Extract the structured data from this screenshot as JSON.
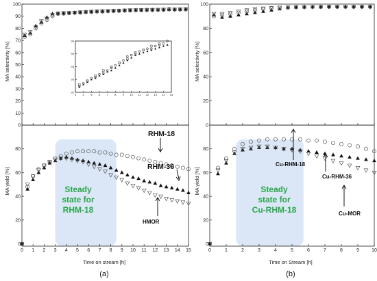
{
  "colors": {
    "shade": "#dbe7f6",
    "shade_text": "#2aa64a",
    "marker": "#111111",
    "open_marker": "#555555"
  },
  "chart_data": [
    {
      "type": "scatter",
      "id": "a_top",
      "xlim": [
        0,
        15
      ],
      "ylim": [
        0,
        100
      ],
      "ylabel": "MA selectivity [%]",
      "xticks": [
        0,
        1,
        2,
        3,
        4,
        5,
        6,
        7,
        8,
        9,
        10,
        11,
        12,
        13,
        14,
        15
      ],
      "yticks": [
        0,
        10,
        20,
        30,
        40,
        50,
        60,
        70,
        80,
        90,
        100
      ],
      "series": [
        {
          "marker": "triangle",
          "x": [
            0.25,
            0.75,
            1.25,
            1.75,
            2.25,
            2.75,
            3.25,
            3.75,
            4.25,
            4.75,
            5.25,
            5.75,
            6.25,
            6.75,
            7.25,
            7.75,
            8.25,
            8.75,
            9.25,
            9.75,
            10.25,
            10.75,
            11.25,
            11.75,
            12.25,
            12.75,
            13.25,
            13.75,
            14.25,
            14.75
          ],
          "values": [
            74,
            76,
            82,
            85,
            89,
            92,
            92.3,
            92.5,
            92.7,
            93,
            93.2,
            93.5,
            93.7,
            94,
            94,
            94.3,
            94.4,
            94.6,
            94.8,
            94.9,
            95,
            95.1,
            95.2,
            95.3,
            95.3,
            95.4,
            95.5,
            95.6,
            95.7,
            95.8
          ]
        },
        {
          "marker": "circle",
          "x": [
            0.25,
            0.75,
            1.25,
            1.75,
            2.25,
            2.75,
            3.25,
            3.75,
            4.25,
            4.75,
            5.25,
            5.75,
            6.25,
            6.75,
            7.25,
            7.75,
            8.25,
            8.75,
            9.25,
            9.75,
            10.25,
            10.75,
            11.25,
            11.75,
            12.25,
            12.75,
            13.25,
            13.75,
            14.25,
            14.75
          ],
          "values": [
            73,
            75,
            80,
            84,
            87,
            90,
            92,
            92.2,
            92.6,
            92.9,
            93.1,
            93.4,
            93.6,
            93.9,
            94,
            94.2,
            94.4,
            94.5,
            94.7,
            94.8,
            95,
            95.1,
            95.2,
            95.2,
            95.3,
            95.4,
            96,
            95.5,
            95.6,
            95.7
          ]
        },
        {
          "marker": "open-triangle-down",
          "x": [
            0.25,
            0.75,
            1.25,
            1.75,
            2.25,
            2.75,
            3.25,
            3.75,
            4.25,
            4.75,
            5.25,
            5.75,
            6.25,
            6.75,
            7.25,
            7.75,
            8.25,
            8.75,
            9.25,
            9.75,
            10.25,
            10.75,
            11.25,
            11.75,
            12.25,
            12.75,
            13.25,
            13.75,
            14.25,
            14.75
          ],
          "values": [
            75,
            77,
            81,
            86,
            88,
            91,
            92.4,
            92.6,
            92.8,
            93,
            93.3,
            93.6,
            93.8,
            94.1,
            94.2,
            94.4,
            94.5,
            94.7,
            94.8,
            95,
            95.1,
            95.2,
            95.3,
            95.3,
            95.4,
            95.5,
            95.5,
            95.6,
            95.8,
            95.9
          ]
        }
      ]
    },
    {
      "type": "scatter",
      "id": "a_inset",
      "xlim": [
        3,
        15
      ],
      "ylim": [
        92,
        96
      ],
      "xticks": [
        3,
        4,
        5,
        6,
        7,
        8,
        9,
        10,
        11,
        12,
        13,
        14,
        15
      ],
      "yticks": [
        92,
        93,
        94,
        95,
        96
      ],
      "series": [
        {
          "marker": "triangle",
          "x": [
            3.5,
            4,
            4.5,
            5,
            5.5,
            6,
            6.5,
            7,
            7.5,
            8,
            8.5,
            9,
            9.5,
            10,
            10.5,
            11,
            11.5,
            12,
            12.5,
            13,
            13.5,
            14,
            14.5
          ],
          "values": [
            92.4,
            92.6,
            92.8,
            93,
            93.1,
            93.3,
            93.4,
            93.6,
            93.7,
            93.9,
            94.1,
            94.3,
            94.5,
            94.7,
            94.9,
            95,
            95.1,
            95.2,
            95.3,
            95.4,
            95.5,
            95.6,
            95.7
          ]
        },
        {
          "marker": "circle",
          "x": [
            3.5,
            4,
            4.5,
            5,
            5.5,
            6,
            6.5,
            7,
            7.5,
            8,
            8.5,
            9,
            9.5,
            10,
            10.5,
            11,
            11.5,
            12,
            12.5,
            13,
            13.5,
            14,
            14.5
          ],
          "values": [
            92.5,
            92.7,
            92.9,
            93.1,
            93.2,
            93.4,
            93.5,
            93.7,
            93.9,
            94.1,
            94.3,
            94.5,
            94.8,
            94.9,
            95.1,
            95.2,
            95.3,
            95.4,
            95.4,
            95.6,
            95.7,
            95.8,
            96
          ]
        },
        {
          "marker": "open-square",
          "x": [
            3.5,
            4.5,
            5.5,
            6.5,
            7.5,
            8.5,
            9.5,
            10.5,
            11.5,
            12.5,
            13.5,
            14.5
          ],
          "values": [
            92.6,
            92.9,
            93.3,
            93.7,
            94,
            94.3,
            94.6,
            95,
            95.3,
            95.6,
            95.8,
            96.1
          ]
        }
      ]
    },
    {
      "type": "scatter",
      "id": "a_bottom",
      "xlim": [
        0,
        15
      ],
      "ylim": [
        -2,
        100
      ],
      "xlabel": "Time on stream [h]",
      "ylabel": "MA yield [%]",
      "xticks": [
        0,
        1,
        2,
        3,
        4,
        5,
        6,
        7,
        8,
        9,
        10,
        11,
        12,
        13,
        14,
        15
      ],
      "yticks": [
        0,
        20,
        40,
        60,
        80
      ],
      "shade": [
        3.0,
        8.5
      ],
      "series": [
        {
          "name": "RHM-18",
          "marker": "open-circle",
          "x": [
            0,
            0.5,
            1,
            1.5,
            2,
            2.5,
            3,
            3.5,
            4,
            4.5,
            5,
            5.5,
            6,
            6.5,
            7,
            7.5,
            8,
            8.5,
            9,
            9.5,
            10,
            10.5,
            11,
            11.5,
            12,
            12.5,
            13,
            13.5,
            14,
            14.5,
            15
          ],
          "values": [
            0,
            48,
            57,
            63,
            66,
            69,
            72,
            74,
            76,
            77,
            78,
            78,
            78,
            78,
            77,
            77,
            76,
            75,
            75,
            74,
            73,
            72,
            71,
            70,
            69,
            68,
            67,
            66,
            65,
            64,
            63
          ]
        },
        {
          "name": "RHM-36",
          "marker": "triangle",
          "x": [
            0,
            0.5,
            1,
            1.5,
            2,
            2.5,
            3,
            3.5,
            4,
            4.5,
            5,
            5.5,
            6,
            6.5,
            7,
            7.5,
            8,
            8.5,
            9,
            9.5,
            10,
            10.5,
            11,
            11.5,
            12,
            12.5,
            13,
            13.5,
            14,
            14.5,
            15
          ],
          "values": [
            0,
            46,
            54,
            60,
            64,
            68,
            70,
            72,
            73,
            72,
            71,
            70,
            69,
            68,
            67,
            66,
            64,
            62,
            60,
            58,
            56,
            55,
            53,
            52,
            51,
            49,
            48,
            47,
            46,
            45,
            43
          ]
        },
        {
          "name": "HMOR",
          "marker": "open-triangle-down",
          "x": [
            0,
            0.5,
            1,
            1.5,
            2,
            2.5,
            3,
            3.5,
            4,
            4.5,
            5,
            5.5,
            6,
            6.5,
            7,
            7.5,
            8,
            8.5,
            9,
            9.5,
            10,
            10.5,
            11,
            11.5,
            12,
            12.5,
            13,
            13.5,
            14,
            14.5,
            15
          ],
          "values": [
            0,
            50,
            57,
            62,
            66,
            69,
            71,
            72,
            72,
            71,
            70,
            69,
            67,
            65,
            63,
            61,
            58,
            56,
            54,
            51,
            49,
            47,
            45,
            43,
            41,
            40,
            38,
            37,
            36,
            35,
            34
          ]
        }
      ],
      "annotations": [
        "RHM-18",
        "RHM-36",
        "HMOR"
      ],
      "shade_label": [
        "Steady",
        "state for",
        "RHM-18"
      ]
    },
    {
      "type": "scatter",
      "id": "b_top",
      "xlim": [
        0,
        10
      ],
      "ylim": [
        0,
        100
      ],
      "ylabel": "MA selectivity [%]",
      "xticks": [
        0,
        1,
        2,
        3,
        4,
        5,
        6,
        7,
        8,
        9,
        10
      ],
      "yticks": [
        0,
        20,
        40,
        60,
        80,
        100
      ],
      "series": [
        {
          "marker": "triangle",
          "x": [
            0.25,
            0.75,
            1.25,
            1.75,
            2.25,
            2.75,
            3.25,
            3.75,
            4.25,
            4.75,
            5.25,
            5.75,
            6.25,
            6.75,
            7.25,
            7.75,
            8.25,
            8.75,
            9.25,
            9.75
          ],
          "values": [
            91,
            89,
            90,
            91,
            92,
            93,
            94,
            95,
            96,
            97,
            97.5,
            97.6,
            97.7,
            97.7,
            97.8,
            97.8,
            97.8,
            97.8,
            97.8,
            97.8
          ]
        },
        {
          "marker": "circle",
          "x": [
            0.25,
            0.75,
            1.25,
            1.75,
            2.25,
            2.75,
            3.25,
            3.75,
            4.25,
            4.75,
            5.25,
            5.75,
            6.25,
            6.75,
            7.25,
            7.75,
            8.25,
            8.75,
            9.25,
            9.75
          ],
          "values": [
            90,
            91,
            92,
            93,
            94,
            95,
            96,
            96.5,
            97,
            97.3,
            97.5,
            97.6,
            97.7,
            97.7,
            97.8,
            97.8,
            97.8,
            97.8,
            97.8,
            97.8
          ]
        },
        {
          "marker": "open-triangle-down",
          "x": [
            0.25,
            0.75,
            1.25,
            1.75,
            2.25,
            2.75,
            3.25,
            3.75,
            4.25,
            4.75,
            5.25,
            5.75,
            6.25,
            6.75,
            7.25,
            7.75,
            8.25,
            8.75,
            9.25,
            9.75
          ],
          "values": [
            92,
            92,
            93,
            94,
            95,
            96,
            96.5,
            97,
            97.2,
            97.4,
            97.5,
            97.6,
            97.7,
            97.7,
            97.8,
            97.8,
            97.8,
            97.8,
            97.8,
            97.8
          ]
        }
      ]
    },
    {
      "type": "scatter",
      "id": "b_bottom",
      "xlim": [
        0,
        10
      ],
      "ylim": [
        -2,
        100
      ],
      "xlabel": "Time on Stream [h]",
      "ylabel": "MA yield [%]",
      "xticks": [
        0,
        1,
        2,
        3,
        4,
        5,
        6,
        7,
        8,
        9,
        10
      ],
      "yticks": [
        0,
        20,
        40,
        60,
        80
      ],
      "shade": [
        1.6,
        5.7
      ],
      "series": [
        {
          "name": "Cu-RHM-18",
          "marker": "open-circle",
          "x": [
            0,
            0.5,
            1,
            1.5,
            2,
            2.5,
            3,
            3.5,
            4,
            4.5,
            5,
            5.5,
            6,
            6.5,
            7,
            7.5,
            8,
            8.5,
            9,
            9.5,
            10
          ],
          "values": [
            0,
            64,
            72,
            80,
            84,
            86,
            87,
            88,
            88,
            88,
            88,
            88,
            87,
            87,
            86,
            85,
            84,
            83,
            82,
            80,
            78
          ]
        },
        {
          "name": "Cu-RHM-36",
          "marker": "triangle",
          "x": [
            0,
            0.5,
            1,
            1.5,
            2,
            2.5,
            3,
            3.5,
            4,
            4.5,
            5,
            5.5,
            6,
            6.5,
            7,
            7.5,
            8,
            8.5,
            9,
            9.5,
            10
          ],
          "values": [
            0,
            59,
            68,
            76,
            79,
            80,
            81,
            81,
            81,
            80,
            80,
            79,
            78,
            77,
            76,
            75,
            74,
            73,
            72,
            71,
            70
          ]
        },
        {
          "name": "Cu-MOR",
          "marker": "open-triangle-down",
          "x": [
            0,
            0.5,
            1,
            1.5,
            2,
            2.5,
            3,
            3.5,
            4,
            4.5,
            5,
            5.5,
            6,
            6.5,
            7,
            7.5,
            8,
            8.5,
            9,
            9.5,
            10
          ],
          "values": [
            0,
            62,
            70,
            77,
            80,
            81,
            82,
            82,
            81,
            80,
            79,
            78,
            76,
            74,
            72,
            70,
            68,
            66,
            64,
            62,
            60
          ]
        }
      ],
      "annotations": [
        "Cu-RHM-18",
        "Cu-RHM-36",
        "Cu-MOR"
      ],
      "shade_label": [
        "Steady",
        "state for",
        "Cu-RHM-18"
      ]
    }
  ],
  "panel_labels": [
    "(a)",
    "(b)"
  ]
}
